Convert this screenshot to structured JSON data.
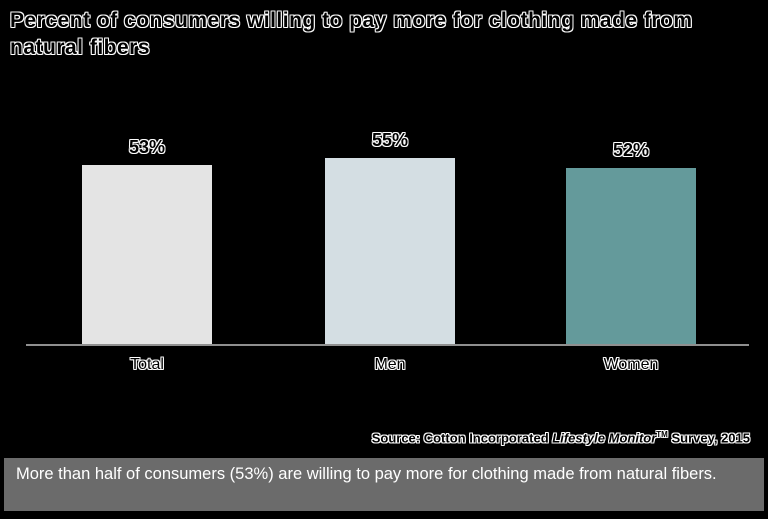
{
  "header": {
    "title": "Percent of consumers willing to pay more for clothing made from natural fibers"
  },
  "chart_data": {
    "type": "bar",
    "title": "Percent of consumers willing to pay more for clothing made from natural fibers",
    "categories": [
      "Total",
      "Men",
      "Women"
    ],
    "values": [
      53,
      55,
      52
    ],
    "value_labels": [
      "53%",
      "55%",
      "52%"
    ],
    "bar_colors": [
      "#e4e4e4",
      "#d4dee3",
      "#649a9b"
    ],
    "xlabel": "",
    "ylabel": "",
    "ylim": [
      0,
      60
    ],
    "grid": false,
    "legend_position": "none"
  },
  "source": {
    "prefix": "Source: Cotton Incorporated ",
    "italic": "Lifestyle Monitor",
    "trademark": "TM",
    "suffix": " Survey, 2015"
  },
  "caption": {
    "text": "More than half of consumers (53%) are willing to pay more for clothing made from natural fibers."
  },
  "colors": {
    "background": "#000000",
    "axis_line": "#8f8f8f",
    "caption_background": "#6b6b6b",
    "caption_text": "#ffffff",
    "label_text": "#000000"
  }
}
